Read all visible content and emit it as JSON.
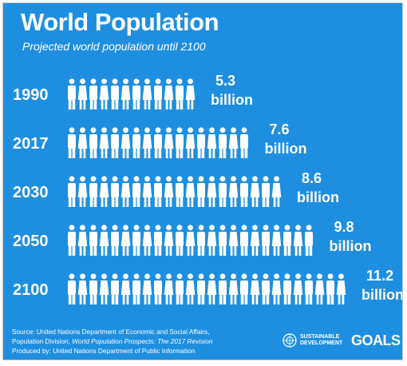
{
  "title": "World Population",
  "subtitle": "Projected world population until 2100",
  "chart_data": {
    "type": "bar",
    "title": "World Population",
    "subtitle": "Projected world population until 2100",
    "unit": "billion",
    "categories": [
      "1990",
      "2017",
      "2030",
      "2050",
      "2100"
    ],
    "values": [
      5.3,
      7.6,
      8.6,
      9.8,
      11.2
    ],
    "value_labels": [
      "5.3",
      "7.6",
      "8.6",
      "9.8",
      "11.2"
    ],
    "unit_label": "billion",
    "icon": "person-icon",
    "colors": {
      "background": "#1e8fe0",
      "foreground": "#ffffff"
    }
  },
  "source": {
    "line1": "Source: United Nations Department of Economic and Social Affairs,",
    "line2_prefix": "Population Division, ",
    "line2_italic": "World Population Prospects: The 2017 Revision",
    "line3": "Produced by: United Nations Department of Public Information"
  },
  "logo": {
    "emblem": "un-emblem-icon",
    "small_line1": "SUSTAINABLE",
    "small_line2": "DEVELOPMENT",
    "big": "GOALS"
  }
}
